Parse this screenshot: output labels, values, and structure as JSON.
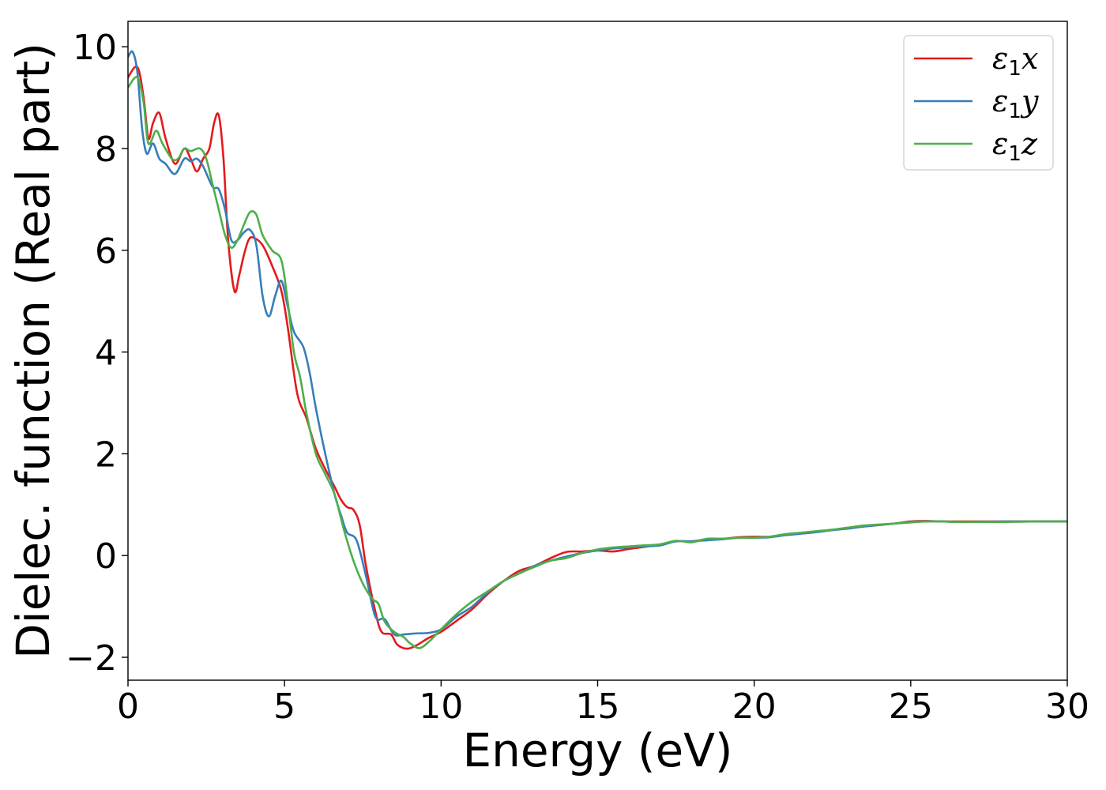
{
  "chart_data": {
    "type": "line",
    "xlabel": "Energy (eV)",
    "ylabel": "Dielec. function (Real part)",
    "xlim": [
      0,
      30
    ],
    "ylim": [
      -2.45,
      10.5
    ],
    "xticks": [
      0,
      5,
      10,
      15,
      20,
      25,
      30
    ],
    "xtick_labels": [
      "0",
      "5",
      "10",
      "15",
      "20",
      "25",
      "30"
    ],
    "yticks": [
      -2,
      0,
      2,
      4,
      6,
      8,
      10
    ],
    "ytick_labels": [
      "−2",
      "0",
      "2",
      "4",
      "6",
      "8",
      "10"
    ],
    "grid": false,
    "legend_position": "top-right",
    "series": [
      {
        "name": "ε1x",
        "label_base": "ε",
        "label_sub": "1",
        "label_var": "x",
        "color": "#e41a1c",
        "points": [
          [
            0,
            9.4
          ],
          [
            0.3,
            9.6
          ],
          [
            0.5,
            9.0
          ],
          [
            0.65,
            8.2
          ],
          [
            0.8,
            8.5
          ],
          [
            1.0,
            8.7
          ],
          [
            1.2,
            8.2
          ],
          [
            1.5,
            7.7
          ],
          [
            1.8,
            8.0
          ],
          [
            2.0,
            7.8
          ],
          [
            2.2,
            7.55
          ],
          [
            2.4,
            7.8
          ],
          [
            2.6,
            8.0
          ],
          [
            2.75,
            8.5
          ],
          [
            2.9,
            8.65
          ],
          [
            3.05,
            7.8
          ],
          [
            3.2,
            6.2
          ],
          [
            3.4,
            5.2
          ],
          [
            3.55,
            5.5
          ],
          [
            3.7,
            5.9
          ],
          [
            3.85,
            6.2
          ],
          [
            4.0,
            6.25
          ],
          [
            4.3,
            6.1
          ],
          [
            4.6,
            5.7
          ],
          [
            4.9,
            5.2
          ],
          [
            5.1,
            4.5
          ],
          [
            5.4,
            3.2
          ],
          [
            5.7,
            2.7
          ],
          [
            6.0,
            2.1
          ],
          [
            6.3,
            1.7
          ],
          [
            6.6,
            1.35
          ],
          [
            6.8,
            1.1
          ],
          [
            7.0,
            0.95
          ],
          [
            7.2,
            0.9
          ],
          [
            7.4,
            0.6
          ],
          [
            7.6,
            -0.2
          ],
          [
            7.9,
            -1.1
          ],
          [
            8.1,
            -1.5
          ],
          [
            8.4,
            -1.55
          ],
          [
            8.6,
            -1.75
          ],
          [
            8.9,
            -1.83
          ],
          [
            9.2,
            -1.77
          ],
          [
            9.6,
            -1.62
          ],
          [
            10.0,
            -1.5
          ],
          [
            10.5,
            -1.28
          ],
          [
            11.0,
            -1.05
          ],
          [
            11.5,
            -0.75
          ],
          [
            12.0,
            -0.5
          ],
          [
            12.5,
            -0.3
          ],
          [
            13.0,
            -0.2
          ],
          [
            13.5,
            -0.05
          ],
          [
            14.0,
            0.07
          ],
          [
            14.5,
            0.08
          ],
          [
            15.0,
            0.1
          ],
          [
            15.5,
            0.08
          ],
          [
            16.0,
            0.13
          ],
          [
            16.5,
            0.17
          ],
          [
            17.0,
            0.22
          ],
          [
            17.5,
            0.28
          ],
          [
            18.0,
            0.28
          ],
          [
            18.5,
            0.32
          ],
          [
            19.0,
            0.33
          ],
          [
            19.5,
            0.36
          ],
          [
            20.0,
            0.37
          ],
          [
            20.5,
            0.37
          ],
          [
            21.0,
            0.42
          ],
          [
            21.5,
            0.44
          ],
          [
            22.0,
            0.47
          ],
          [
            22.5,
            0.5
          ],
          [
            23.0,
            0.54
          ],
          [
            23.5,
            0.57
          ],
          [
            24.0,
            0.6
          ],
          [
            24.5,
            0.63
          ],
          [
            25.0,
            0.67
          ],
          [
            25.5,
            0.68
          ],
          [
            26.0,
            0.67
          ],
          [
            26.5,
            0.67
          ],
          [
            27.0,
            0.67
          ],
          [
            28.0,
            0.67
          ],
          [
            29.0,
            0.67
          ],
          [
            30.0,
            0.67
          ]
        ]
      },
      {
        "name": "ε1y",
        "label_base": "ε",
        "label_sub": "1",
        "label_var": "y",
        "color": "#377eb8",
        "points": [
          [
            0,
            9.8
          ],
          [
            0.15,
            9.9
          ],
          [
            0.3,
            9.5
          ],
          [
            0.45,
            8.4
          ],
          [
            0.6,
            7.9
          ],
          [
            0.8,
            8.1
          ],
          [
            1.0,
            7.8
          ],
          [
            1.2,
            7.7
          ],
          [
            1.5,
            7.5
          ],
          [
            1.8,
            7.8
          ],
          [
            2.0,
            7.75
          ],
          [
            2.2,
            7.8
          ],
          [
            2.4,
            7.65
          ],
          [
            2.7,
            7.25
          ],
          [
            2.9,
            7.2
          ],
          [
            3.1,
            6.8
          ],
          [
            3.3,
            6.2
          ],
          [
            3.5,
            6.2
          ],
          [
            3.7,
            6.35
          ],
          [
            3.9,
            6.4
          ],
          [
            4.1,
            6.1
          ],
          [
            4.3,
            5.1
          ],
          [
            4.5,
            4.7
          ],
          [
            4.7,
            5.1
          ],
          [
            4.9,
            5.4
          ],
          [
            5.1,
            4.9
          ],
          [
            5.3,
            4.4
          ],
          [
            5.6,
            4.1
          ],
          [
            5.8,
            3.6
          ],
          [
            6.0,
            2.9
          ],
          [
            6.3,
            2.0
          ],
          [
            6.6,
            1.2
          ],
          [
            6.8,
            0.8
          ],
          [
            7.0,
            0.45
          ],
          [
            7.3,
            0.3
          ],
          [
            7.6,
            -0.4
          ],
          [
            7.9,
            -1.2
          ],
          [
            8.2,
            -1.25
          ],
          [
            8.5,
            -1.55
          ],
          [
            8.8,
            -1.55
          ],
          [
            9.2,
            -1.53
          ],
          [
            9.6,
            -1.52
          ],
          [
            10.0,
            -1.45
          ],
          [
            10.5,
            -1.2
          ],
          [
            11.0,
            -1.0
          ],
          [
            11.5,
            -0.72
          ],
          [
            12.0,
            -0.5
          ],
          [
            12.5,
            -0.35
          ],
          [
            13.0,
            -0.2
          ],
          [
            13.5,
            -0.1
          ],
          [
            14.0,
            -0.02
          ],
          [
            14.5,
            0.05
          ],
          [
            15.0,
            0.1
          ],
          [
            15.5,
            0.14
          ],
          [
            16.0,
            0.16
          ],
          [
            16.5,
            0.18
          ],
          [
            17.0,
            0.2
          ],
          [
            17.5,
            0.28
          ],
          [
            18.0,
            0.28
          ],
          [
            18.5,
            0.3
          ],
          [
            19.0,
            0.32
          ],
          [
            19.5,
            0.35
          ],
          [
            20.0,
            0.35
          ],
          [
            20.5,
            0.36
          ],
          [
            21.0,
            0.4
          ],
          [
            21.5,
            0.43
          ],
          [
            22.0,
            0.46
          ],
          [
            22.5,
            0.5
          ],
          [
            23.0,
            0.53
          ],
          [
            23.5,
            0.57
          ],
          [
            24.0,
            0.6
          ],
          [
            24.5,
            0.63
          ],
          [
            25.0,
            0.66
          ],
          [
            25.5,
            0.67
          ],
          [
            26.0,
            0.67
          ],
          [
            26.5,
            0.66
          ],
          [
            27.0,
            0.66
          ],
          [
            28.0,
            0.67
          ],
          [
            29.0,
            0.67
          ],
          [
            30.0,
            0.67
          ]
        ]
      },
      {
        "name": "ε1z",
        "label_base": "ε",
        "label_sub": "1",
        "label_var": "z",
        "color": "#4daf4a",
        "points": [
          [
            0,
            9.2
          ],
          [
            0.3,
            9.4
          ],
          [
            0.5,
            8.9
          ],
          [
            0.65,
            8.1
          ],
          [
            0.9,
            8.35
          ],
          [
            1.1,
            8.1
          ],
          [
            1.4,
            7.8
          ],
          [
            1.6,
            7.8
          ],
          [
            1.8,
            8.0
          ],
          [
            2.0,
            7.95
          ],
          [
            2.3,
            8.0
          ],
          [
            2.5,
            7.8
          ],
          [
            2.7,
            7.3
          ],
          [
            2.9,
            6.8
          ],
          [
            3.1,
            6.3
          ],
          [
            3.3,
            6.05
          ],
          [
            3.5,
            6.2
          ],
          [
            3.7,
            6.5
          ],
          [
            3.9,
            6.75
          ],
          [
            4.1,
            6.7
          ],
          [
            4.3,
            6.3
          ],
          [
            4.6,
            6.0
          ],
          [
            4.9,
            5.8
          ],
          [
            5.1,
            5.0
          ],
          [
            5.3,
            4.0
          ],
          [
            5.5,
            3.5
          ],
          [
            5.7,
            2.8
          ],
          [
            6.0,
            2.0
          ],
          [
            6.3,
            1.6
          ],
          [
            6.6,
            1.2
          ],
          [
            6.9,
            0.5
          ],
          [
            7.2,
            -0.1
          ],
          [
            7.5,
            -0.55
          ],
          [
            7.8,
            -0.85
          ],
          [
            8.0,
            -0.95
          ],
          [
            8.2,
            -1.3
          ],
          [
            8.5,
            -1.5
          ],
          [
            8.8,
            -1.6
          ],
          [
            9.0,
            -1.72
          ],
          [
            9.3,
            -1.82
          ],
          [
            9.6,
            -1.7
          ],
          [
            10.0,
            -1.45
          ],
          [
            10.5,
            -1.15
          ],
          [
            11.0,
            -0.9
          ],
          [
            11.5,
            -0.7
          ],
          [
            12.0,
            -0.5
          ],
          [
            12.5,
            -0.35
          ],
          [
            13.0,
            -0.22
          ],
          [
            13.5,
            -0.1
          ],
          [
            14.0,
            -0.05
          ],
          [
            14.5,
            0.05
          ],
          [
            15.0,
            0.12
          ],
          [
            15.5,
            0.16
          ],
          [
            16.0,
            0.18
          ],
          [
            16.5,
            0.2
          ],
          [
            17.0,
            0.22
          ],
          [
            17.5,
            0.29
          ],
          [
            18.0,
            0.26
          ],
          [
            18.5,
            0.33
          ],
          [
            19.0,
            0.33
          ],
          [
            19.5,
            0.35
          ],
          [
            20.0,
            0.35
          ],
          [
            20.5,
            0.37
          ],
          [
            21.0,
            0.42
          ],
          [
            21.5,
            0.45
          ],
          [
            22.0,
            0.48
          ],
          [
            22.5,
            0.51
          ],
          [
            23.0,
            0.55
          ],
          [
            23.5,
            0.59
          ],
          [
            24.0,
            0.61
          ],
          [
            24.5,
            0.63
          ],
          [
            25.0,
            0.65
          ],
          [
            25.5,
            0.67
          ],
          [
            26.0,
            0.67
          ],
          [
            26.5,
            0.66
          ],
          [
            27.0,
            0.66
          ],
          [
            28.0,
            0.66
          ],
          [
            29.0,
            0.67
          ],
          [
            30.0,
            0.67
          ]
        ]
      }
    ]
  }
}
